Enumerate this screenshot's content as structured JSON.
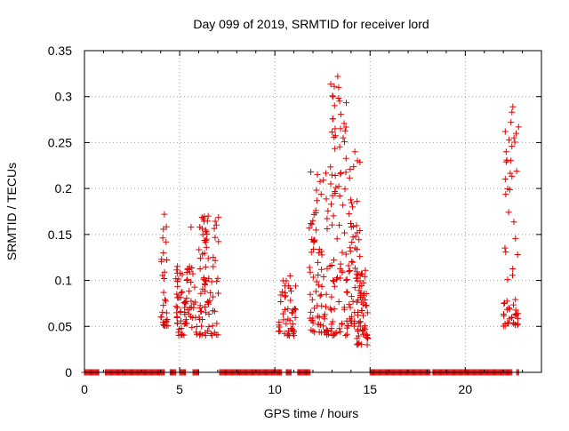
{
  "chart_data": {
    "type": "scatter",
    "title": "Day 099 of 2019, SRMTID for receiver lord",
    "xlabel": "GPS time / hours",
    "ylabel": "SRMTID / TECUs",
    "xlim": [
      0,
      24
    ],
    "ylim": [
      0,
      0.35
    ],
    "grid": true,
    "marker": "+",
    "series_color": "#e00000",
    "x_ticks": [
      0,
      5,
      10,
      15,
      20
    ],
    "x_tick_labels": [
      "0",
      "5",
      "10",
      "15",
      "20"
    ],
    "y_ticks": [
      0,
      0.05,
      0.1,
      0.15,
      0.2,
      0.25,
      0.3,
      0.35
    ],
    "y_tick_labels": [
      "0",
      "0.05",
      "0.1",
      "0.15",
      "0.2",
      "0.25",
      "0.3",
      "0.35"
    ],
    "clusters": [
      {
        "x_range": [
          4.0,
          4.4
        ],
        "y_range": [
          0.05,
          0.17
        ],
        "count": 28,
        "seed": 11
      },
      {
        "x_range": [
          4.8,
          5.9
        ],
        "y_range": [
          0.04,
          0.12
        ],
        "count": 75,
        "seed": 23
      },
      {
        "x_range": [
          6.0,
          7.1
        ],
        "y_range": [
          0.04,
          0.17
        ],
        "count": 80,
        "seed": 37
      },
      {
        "x_range": [
          10.2,
          11.1
        ],
        "y_range": [
          0.04,
          0.1
        ],
        "count": 45,
        "seed": 41
      },
      {
        "x_range": [
          11.8,
          12.9
        ],
        "y_range": [
          0.04,
          0.23
        ],
        "count": 80,
        "seed": 53
      },
      {
        "x_range": [
          12.9,
          13.8
        ],
        "y_range": [
          0.04,
          0.32
        ],
        "count": 85,
        "seed": 67
      },
      {
        "x_range": [
          13.8,
          14.5
        ],
        "y_range": [
          0.05,
          0.24
        ],
        "count": 60,
        "seed": 71
      },
      {
        "x_range": [
          14.3,
          14.9
        ],
        "y_range": [
          0.03,
          0.12
        ],
        "count": 50,
        "seed": 83
      },
      {
        "x_range": [
          22.0,
          22.8
        ],
        "y_range": [
          0.05,
          0.29
        ],
        "count": 55,
        "seed": 97
      }
    ],
    "points": [
      {
        "x": 4.2,
        "y": 0.172
      },
      {
        "x": 6.5,
        "y": 0.17
      },
      {
        "x": 5.6,
        "y": 0.158
      },
      {
        "x": 13.3,
        "y": 0.322
      },
      {
        "x": 13.35,
        "y": 0.31
      },
      {
        "x": 13.4,
        "y": 0.295
      },
      {
        "x": 13.45,
        "y": 0.265
      },
      {
        "x": 14.2,
        "y": 0.24
      },
      {
        "x": 14.85,
        "y": 0.03
      },
      {
        "x": 22.5,
        "y": 0.289
      },
      {
        "x": 22.45,
        "y": 0.283
      },
      {
        "x": 22.4,
        "y": 0.272
      },
      {
        "x": 22.1,
        "y": 0.262
      },
      {
        "x": 22.3,
        "y": 0.253
      },
      {
        "x": 10.8,
        "y": 0.105
      },
      {
        "x": 11.0,
        "y": 0.04
      },
      {
        "x": 12.0,
        "y": 0.045
      },
      {
        "x": 14.6,
        "y": 0.045
      }
    ],
    "zero_bands": [
      [
        0.0,
        0.8
      ],
      [
        1.1,
        4.2
      ],
      [
        4.5,
        4.8
      ],
      [
        5.0,
        5.3
      ],
      [
        5.7,
        6.0
      ],
      [
        7.1,
        10.4
      ],
      [
        10.6,
        10.9
      ],
      [
        11.2,
        11.9
      ],
      [
        15.0,
        18.2
      ],
      [
        18.3,
        22.5
      ],
      [
        22.7,
        22.8
      ]
    ]
  }
}
